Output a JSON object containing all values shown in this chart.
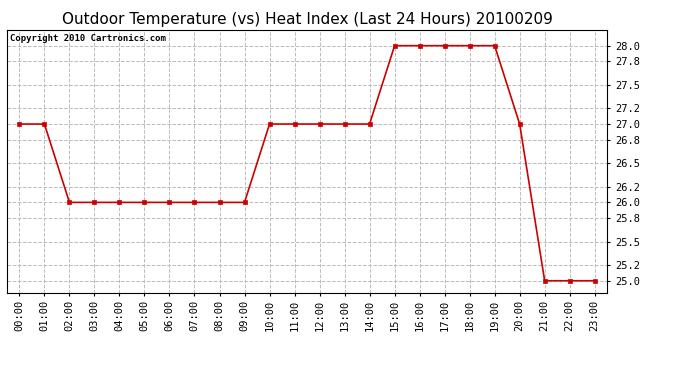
{
  "title": "Outdoor Temperature (vs) Heat Index (Last 24 Hours) 20100209",
  "copyright": "Copyright 2010 Cartronics.com",
  "line_color": "#cc0000",
  "marker": "s",
  "marker_size": 3,
  "background_color": "#ffffff",
  "plot_bg_color": "#ffffff",
  "grid_color": "#bbbbbb",
  "grid_style": "--",
  "x_labels": [
    "00:00",
    "01:00",
    "02:00",
    "03:00",
    "04:00",
    "05:00",
    "06:00",
    "07:00",
    "08:00",
    "09:00",
    "10:00",
    "11:00",
    "12:00",
    "13:00",
    "14:00",
    "15:00",
    "16:00",
    "17:00",
    "18:00",
    "19:00",
    "20:00",
    "21:00",
    "22:00",
    "23:00"
  ],
  "y_values": [
    27.0,
    27.0,
    26.0,
    26.0,
    26.0,
    26.0,
    26.0,
    26.0,
    26.0,
    26.0,
    27.0,
    27.0,
    27.0,
    27.0,
    27.0,
    28.0,
    28.0,
    28.0,
    28.0,
    28.0,
    27.0,
    25.0,
    25.0,
    25.0
  ],
  "ylim": [
    24.85,
    28.2
  ],
  "yticks": [
    25.0,
    25.2,
    25.5,
    25.8,
    26.0,
    26.2,
    26.5,
    26.8,
    27.0,
    27.2,
    27.5,
    27.8,
    28.0
  ],
  "title_fontsize": 11,
  "copyright_fontsize": 6.5,
  "tick_fontsize": 7.5,
  "border_color": "#000000",
  "linewidth": 1.2
}
